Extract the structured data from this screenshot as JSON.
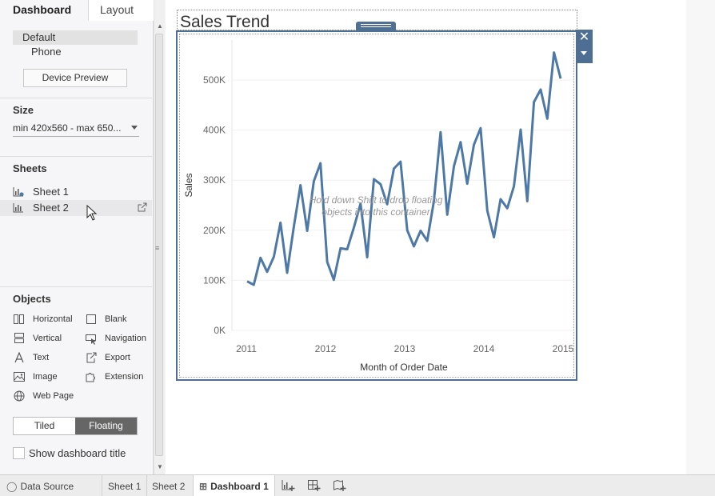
{
  "left_panel": {
    "tabs": {
      "dashboard": "Dashboard",
      "layout": "Layout"
    },
    "devices": {
      "default": "Default",
      "phone": "Phone",
      "preview_button": "Device Preview"
    },
    "size": {
      "title": "Size",
      "value": "min 420x560 - max 650..."
    },
    "sheets": {
      "title": "Sheets",
      "items": [
        {
          "label": "Sheet 1"
        },
        {
          "label": "Sheet 2"
        }
      ]
    },
    "objects": {
      "title": "Objects",
      "items": [
        {
          "label": "Horizontal",
          "icon": "horizontal-container-icon"
        },
        {
          "label": "Blank",
          "icon": "blank-icon"
        },
        {
          "label": "Vertical",
          "icon": "vertical-container-icon"
        },
        {
          "label": "Navigation",
          "icon": "navigation-icon"
        },
        {
          "label": "Text",
          "icon": "text-icon"
        },
        {
          "label": "Export",
          "icon": "export-icon"
        },
        {
          "label": "Image",
          "icon": "image-icon"
        },
        {
          "label": "Extension",
          "icon": "extension-icon"
        },
        {
          "label": "Web Page",
          "icon": "web-page-icon"
        }
      ]
    },
    "layout_mode": {
      "tiled": "Tiled",
      "floating": "Floating",
      "selected": "Floating"
    },
    "show_title": {
      "label": "Show dashboard title",
      "checked": false
    }
  },
  "canvas": {
    "title": "Sales Trend",
    "drop_hint_line1": "Hold down Shift to drop floating",
    "drop_hint_line2": "objects into this container"
  },
  "chart_data": {
    "type": "line",
    "xlabel": "Month of Order Date",
    "ylabel": "Sales",
    "x_ticks": [
      "2011",
      "2012",
      "2013",
      "2014",
      "2015"
    ],
    "y_ticks": [
      "0K",
      "100K",
      "200K",
      "300K",
      "400K",
      "500K"
    ],
    "ylim": [
      0,
      580000
    ],
    "xlim": [
      2011,
      2015
    ],
    "color": "#4e79a7",
    "series": [
      {
        "values": [
          98000,
          91000,
          145000,
          117000,
          147000,
          215000,
          115000,
          207000,
          290000,
          199000,
          298000,
          334000,
          137000,
          101000,
          164000,
          162000,
          205000,
          253000,
          146000,
          302000,
          292000,
          252000,
          323000,
          337000,
          200000,
          168000,
          199000,
          179000,
          258000,
          396000,
          231000,
          328000,
          376000,
          293000,
          371000,
          404000,
          239000,
          186000,
          262000,
          244000,
          288000,
          401000,
          258000,
          456000,
          481000,
          423000,
          555000,
          503000
        ]
      }
    ]
  },
  "bottom_bar": {
    "data_source": "Data Source",
    "sheet1": "Sheet 1",
    "sheet2": "Sheet 2",
    "dashboard1": "Dashboard 1"
  },
  "colors": {
    "accent": "#4e6f93",
    "line": "#4e79a7"
  }
}
